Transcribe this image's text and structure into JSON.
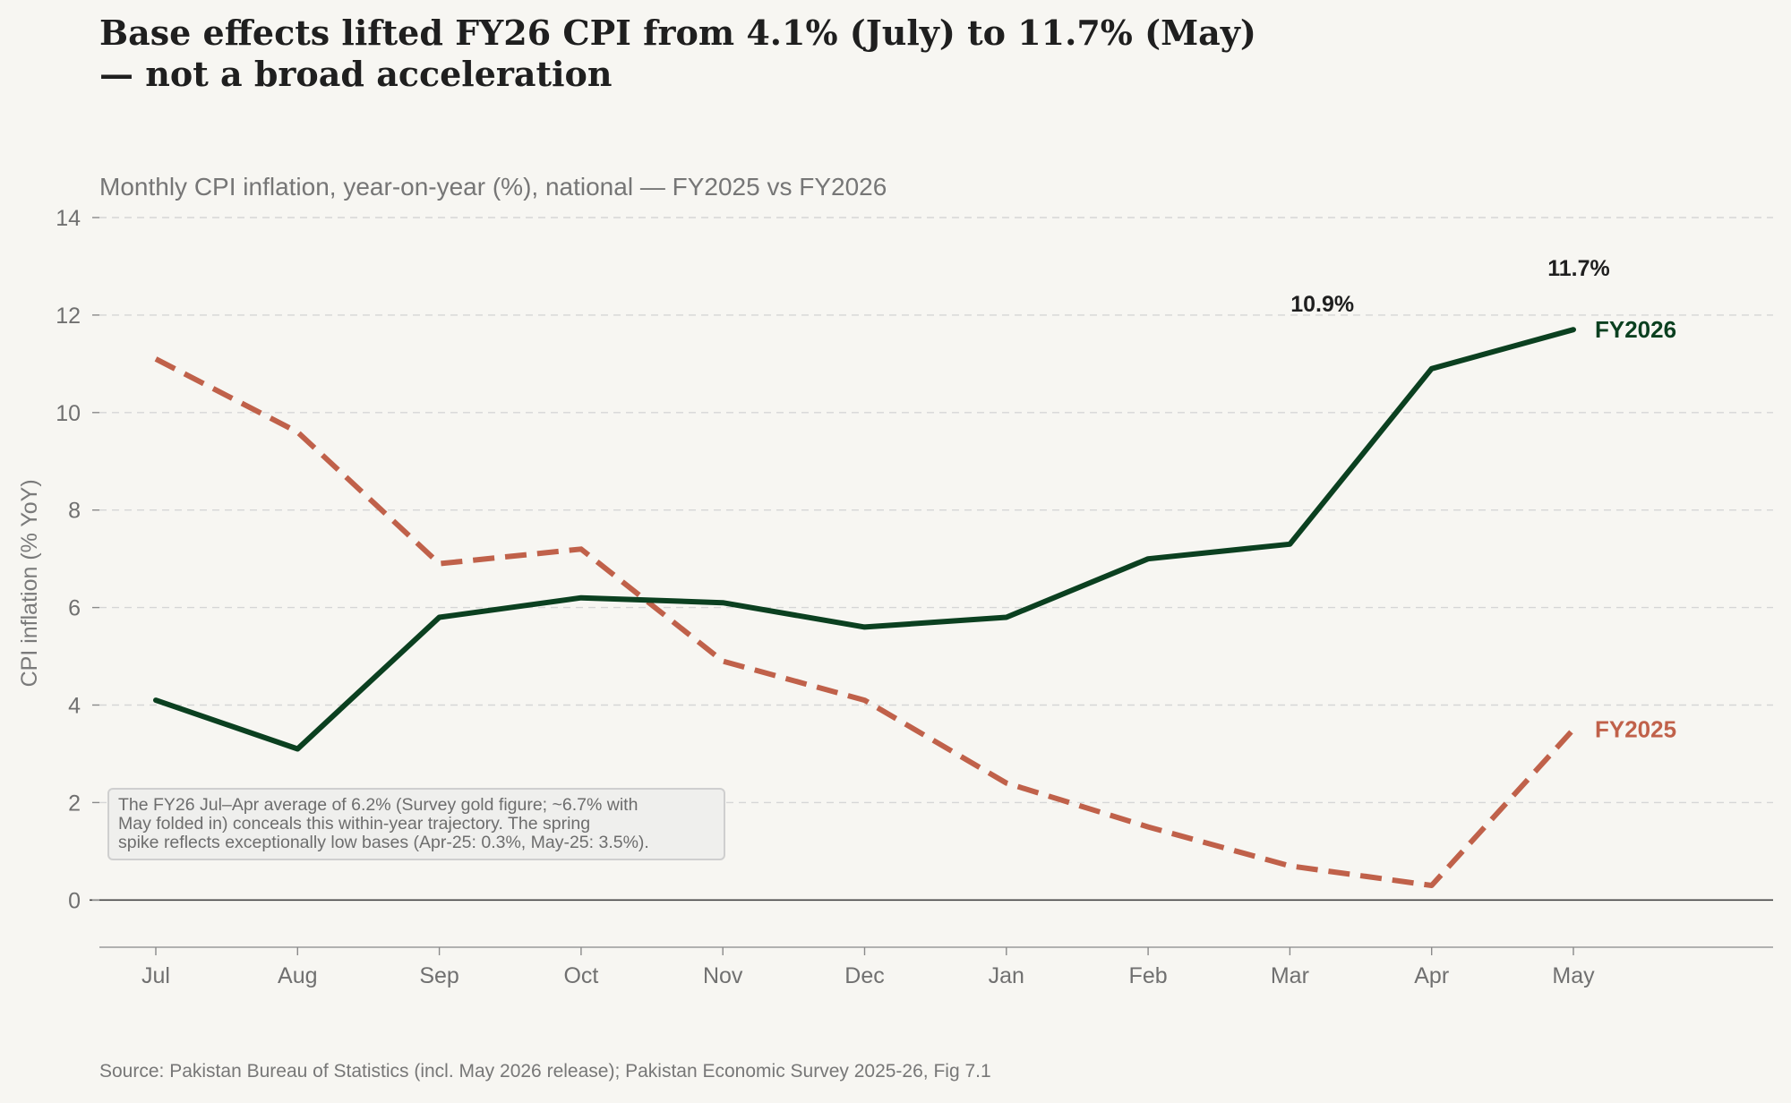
{
  "title_lines": [
    "Base effects lifted FY26 CPI from 4.1% (July) to 11.7% (May)",
    "— not a broad acceleration"
  ],
  "subtitle": "Monthly CPI inflation, year-on-year (%), national — FY2025 vs FY2026",
  "source": "Source: Pakistan Bureau of Statistics (incl. May 2026 release); Pakistan Economic Survey 2025-26, Fig 7.1",
  "annotation": {
    "lines": [
      "The FY26 Jul–Apr average of 6.2% (Survey gold figure; ~6.7% with",
      "May folded in) conceals this within-year trajectory. The spring",
      "spike reflects exceptionally low bases (Apr-25: 0.3%, May-25: 3.5%)."
    ]
  },
  "colors": {
    "fy2026": "#0b4020",
    "fy2025": "#c0614a",
    "grid": "#d6d6d6",
    "zero_line": "#444444"
  },
  "chart_data": {
    "type": "line",
    "categories": [
      "Jul",
      "Aug",
      "Sep",
      "Oct",
      "Nov",
      "Dec",
      "Jan",
      "Feb",
      "Mar",
      "Apr",
      "May"
    ],
    "ylabel": "CPI inflation (% YoY)",
    "ylim": [
      -1,
      14
    ],
    "yticks": [
      0,
      2,
      4,
      6,
      8,
      10,
      12,
      14
    ],
    "grid": true,
    "series": [
      {
        "name": "FY2026",
        "style": "solid",
        "values": [
          4.1,
          3.1,
          5.8,
          6.2,
          6.1,
          5.6,
          5.8,
          7.0,
          7.3,
          10.9,
          11.7
        ]
      },
      {
        "name": "FY2025",
        "style": "dashed",
        "values": [
          11.1,
          9.6,
          6.9,
          7.2,
          4.9,
          4.1,
          2.4,
          1.5,
          0.7,
          0.3,
          3.5
        ]
      }
    ],
    "data_labels": [
      {
        "category": "Apr",
        "value": 10.9,
        "text": "10.9%"
      },
      {
        "category": "May",
        "value": 11.7,
        "text": "11.7%"
      }
    ]
  }
}
